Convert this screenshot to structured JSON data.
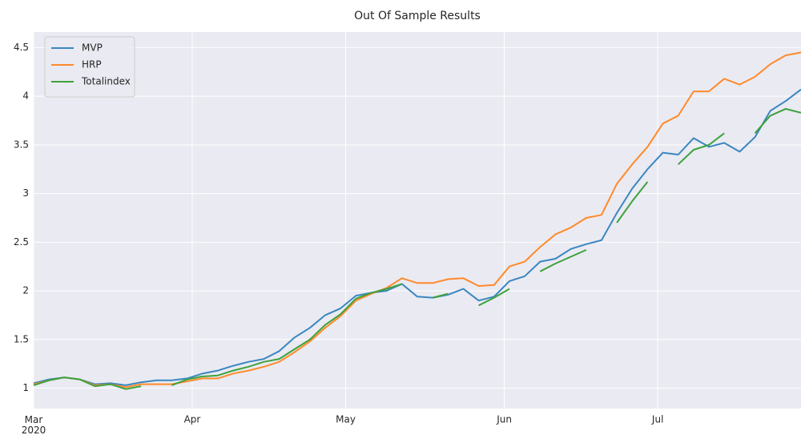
{
  "chart_data": {
    "type": "line",
    "title": "Out Of Sample Results",
    "x": [
      0,
      3,
      6,
      9,
      12,
      15,
      18,
      21,
      24,
      27,
      30,
      33,
      36,
      39,
      42,
      45,
      48,
      51,
      54,
      57,
      60,
      63,
      66,
      69,
      72,
      75,
      78,
      81,
      84,
      87,
      90,
      93,
      96,
      99,
      102,
      105,
      108,
      111,
      114,
      117,
      120,
      123,
      126,
      129,
      132,
      135,
      138,
      141,
      144,
      147,
      150
    ],
    "series": [
      {
        "name": "MVP",
        "color": "#3a87c0",
        "values": [
          1.05,
          1.09,
          1.11,
          1.09,
          1.04,
          1.05,
          1.03,
          1.06,
          1.08,
          1.08,
          1.1,
          1.15,
          1.18,
          1.23,
          1.27,
          1.3,
          1.38,
          1.52,
          1.62,
          1.75,
          1.82,
          1.95,
          1.98,
          2.0,
          2.07,
          1.94,
          1.93,
          1.96,
          2.02,
          1.9,
          1.94,
          2.1,
          2.15,
          2.3,
          2.33,
          2.43,
          2.48,
          2.52,
          2.8,
          3.05,
          3.25,
          3.42,
          3.4,
          3.57,
          3.48,
          3.52,
          3.43,
          3.58,
          3.85,
          3.95,
          4.07
        ]
      },
      {
        "name": "HRP",
        "color": "#ff8a2a",
        "values": [
          1.04,
          1.08,
          1.11,
          1.09,
          1.03,
          1.04,
          1.01,
          1.04,
          1.04,
          1.04,
          1.07,
          1.1,
          1.1,
          1.15,
          1.18,
          1.22,
          1.27,
          1.37,
          1.48,
          1.62,
          1.74,
          1.9,
          1.97,
          2.03,
          2.13,
          2.08,
          2.08,
          2.12,
          2.13,
          2.05,
          2.06,
          2.25,
          2.3,
          2.45,
          2.58,
          2.65,
          2.75,
          2.78,
          3.1,
          3.3,
          3.48,
          3.72,
          3.8,
          4.05,
          4.05,
          4.18,
          4.12,
          4.2,
          4.33,
          4.42,
          4.45
        ]
      },
      {
        "name": "Totalindex",
        "color": "#3ca23c",
        "values": [
          1.03,
          1.08,
          1.11,
          1.09,
          1.02,
          1.04,
          0.99,
          1.02,
          null,
          1.03,
          1.09,
          1.12,
          1.13,
          1.18,
          1.22,
          1.27,
          1.3,
          1.4,
          1.5,
          1.65,
          1.76,
          1.92,
          1.98,
          2.02,
          2.07,
          null,
          1.93,
          1.97,
          null,
          1.85,
          1.93,
          2.02,
          null,
          2.2,
          2.28,
          2.35,
          2.42,
          null,
          2.7,
          2.92,
          3.12,
          null,
          3.3,
          3.45,
          3.5,
          3.62,
          null,
          3.62,
          3.8,
          3.87,
          3.83
        ]
      }
    ],
    "xlim": [
      0,
      150
    ],
    "xticks": [
      {
        "value": 0,
        "label": "Mar\n2020"
      },
      {
        "value": 31,
        "label": "Apr"
      },
      {
        "value": 61,
        "label": "May"
      },
      {
        "value": 92,
        "label": "Jun"
      },
      {
        "value": 122,
        "label": "Jul"
      }
    ],
    "ylim": [
      0.79,
      4.66
    ],
    "yticks": [
      1.0,
      1.5,
      2.0,
      2.5,
      3.0,
      3.5,
      4.0,
      4.5
    ],
    "grid": true,
    "legend": "upper-left",
    "background": "#eaeaf2"
  }
}
